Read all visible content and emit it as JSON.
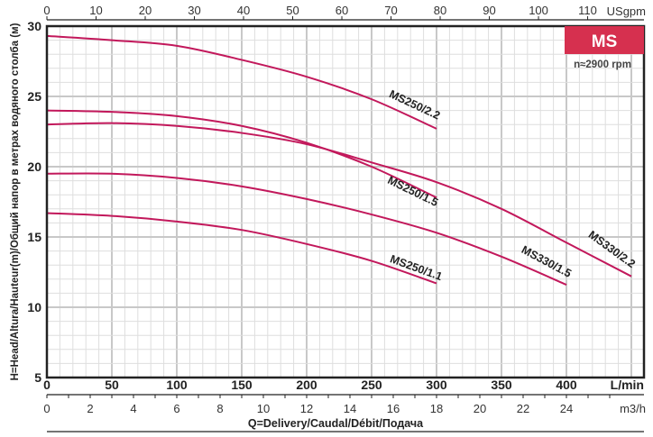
{
  "chart_data": {
    "type": "line",
    "badge": {
      "title": "MS",
      "subtitle": "n≈2900 rpm",
      "color": "#d6304f"
    },
    "xlabel": "Q=Delivery/Caudal/Débit/Подача",
    "ylabel": "H=Head/Altura/Hauteur(m)/Общий напор в метрах водяного столба (м)",
    "x_unit": "L/min",
    "x_top_unit": "USgpm",
    "x_m3h_unit": "m3/h",
    "xlim": [
      0,
      460
    ],
    "ylim": [
      5,
      30
    ],
    "x_ticks": [
      0,
      50,
      100,
      150,
      200,
      250,
      300,
      350,
      400
    ],
    "y_ticks": [
      5,
      10,
      15,
      20,
      25,
      30
    ],
    "x_top_ticks": [
      0,
      10,
      20,
      30,
      40,
      50,
      60,
      70,
      80,
      90,
      100,
      110
    ],
    "x_m3h_ticks": [
      0,
      2,
      4,
      6,
      8,
      10,
      12,
      14,
      16,
      18,
      20,
      22,
      24
    ],
    "grid": true,
    "curve_color": "#c2185b",
    "series": [
      {
        "name": "MS250/2.2",
        "x": [
          0,
          50,
          100,
          150,
          200,
          250,
          300
        ],
        "y": [
          29.3,
          29.0,
          28.6,
          27.6,
          26.4,
          24.8,
          22.7
        ]
      },
      {
        "name": "MS250/1.5",
        "x": [
          0,
          50,
          100,
          150,
          200,
          250,
          300
        ],
        "y": [
          24.0,
          23.9,
          23.6,
          22.9,
          21.7,
          20.0,
          17.8
        ]
      },
      {
        "name": "MS330/2.2",
        "x": [
          0,
          50,
          100,
          150,
          200,
          250,
          300,
          350,
          400,
          450
        ],
        "y": [
          23.0,
          23.1,
          22.9,
          22.4,
          21.6,
          20.3,
          18.9,
          17.0,
          14.6,
          12.2
        ]
      },
      {
        "name": "MS330/1.5",
        "x": [
          0,
          50,
          100,
          150,
          200,
          250,
          300,
          350,
          400
        ],
        "y": [
          19.5,
          19.5,
          19.2,
          18.6,
          17.7,
          16.6,
          15.3,
          13.6,
          11.6
        ]
      },
      {
        "name": "MS250/1.1",
        "x": [
          0,
          50,
          100,
          150,
          200,
          250,
          300
        ],
        "y": [
          16.7,
          16.5,
          16.1,
          15.5,
          14.5,
          13.3,
          11.7
        ]
      }
    ]
  }
}
